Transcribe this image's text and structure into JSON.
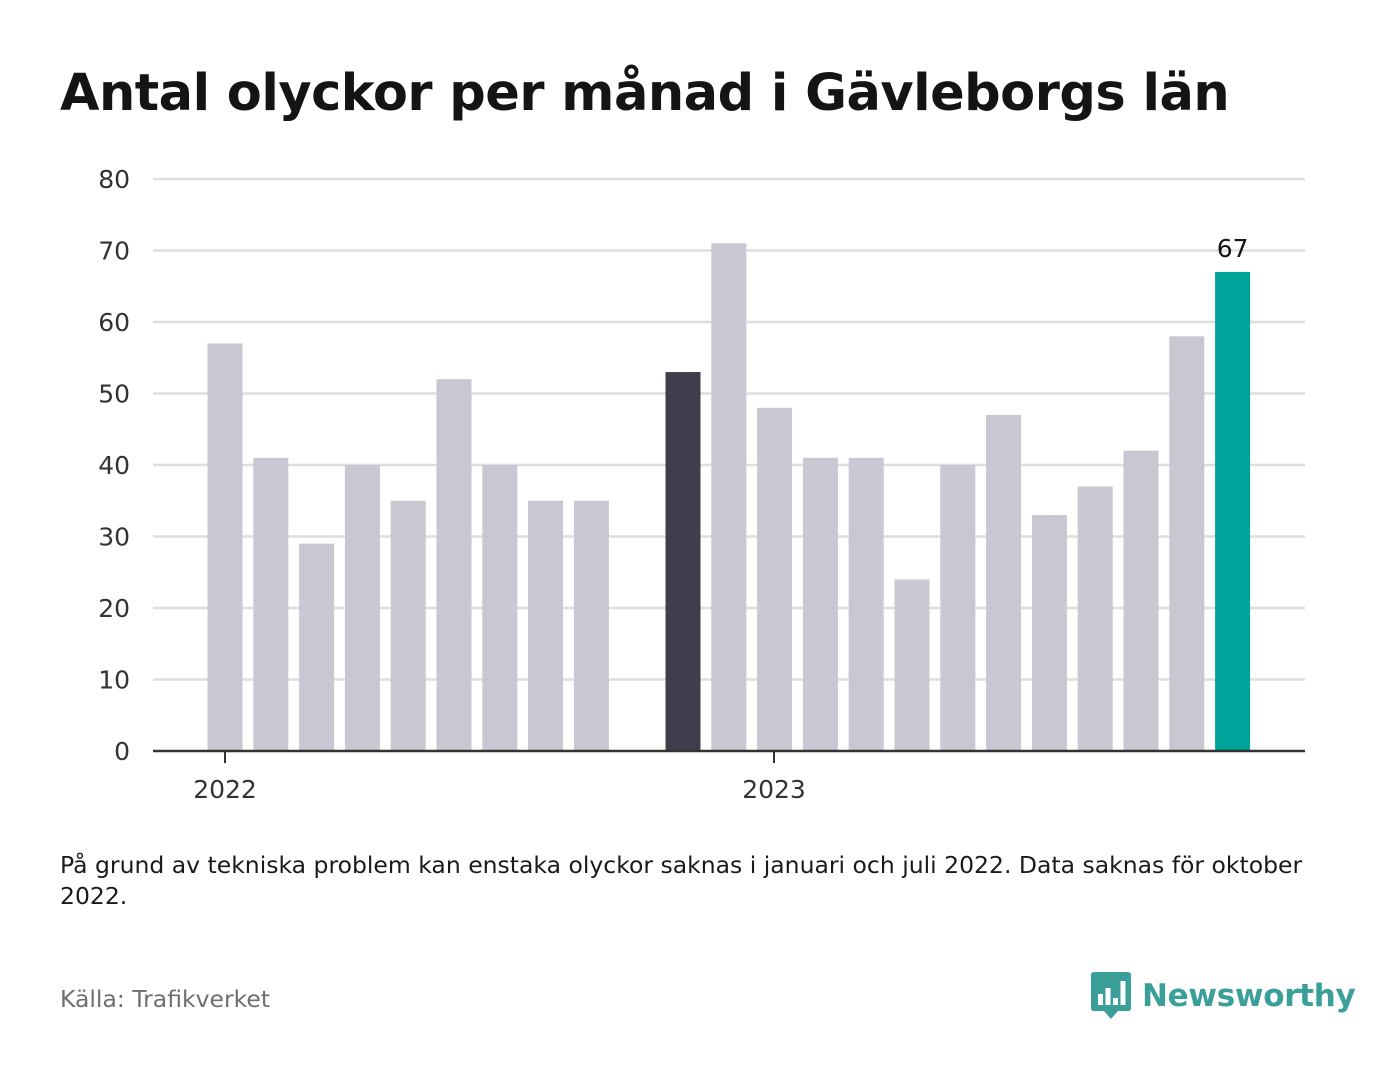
{
  "title": "Antal olyckor per månad i Gävleborgs län",
  "note": "På grund av tekniska problem kan enstaka olyckor saknas i januari och juli 2022. Data saknas för oktober 2022.",
  "source": "Källa: Trafikverket",
  "brand": {
    "name": "Newsworthy",
    "icon": "newsworthy-chart-bubble-icon",
    "color": "#3a9f98"
  },
  "colors": {
    "default": "#c8c7d2",
    "highlight_dark": "#403e4c",
    "highlight_latest": "#00a39a",
    "grid": "#dedede",
    "axis": "#333333"
  },
  "chart_data": {
    "type": "bar",
    "title": "Antal olyckor per månad i Gävleborgs län",
    "xlabel": "",
    "ylabel": "",
    "ylim": [
      0,
      80
    ],
    "yticks": [
      0,
      10,
      20,
      30,
      40,
      50,
      60,
      70,
      80
    ],
    "grid": true,
    "x_tick_labels": [
      {
        "label": "2022",
        "at": "2022-01"
      },
      {
        "label": "2023",
        "at": "2023-01"
      }
    ],
    "data": [
      {
        "month": "2022-01",
        "value": 57
      },
      {
        "month": "2022-02",
        "value": 41
      },
      {
        "month": "2022-03",
        "value": 29
      },
      {
        "month": "2022-04",
        "value": 40
      },
      {
        "month": "2022-05",
        "value": 35
      },
      {
        "month": "2022-06",
        "value": 52
      },
      {
        "month": "2022-07",
        "value": 40
      },
      {
        "month": "2022-08",
        "value": 35
      },
      {
        "month": "2022-09",
        "value": 35
      },
      {
        "month": "2022-10",
        "value": null
      },
      {
        "month": "2022-11",
        "value": 53,
        "highlight": "dark"
      },
      {
        "month": "2022-12",
        "value": 71
      },
      {
        "month": "2023-01",
        "value": 48
      },
      {
        "month": "2023-02",
        "value": 41
      },
      {
        "month": "2023-03",
        "value": 41
      },
      {
        "month": "2023-04",
        "value": 24
      },
      {
        "month": "2023-05",
        "value": 40
      },
      {
        "month": "2023-06",
        "value": 47
      },
      {
        "month": "2023-07",
        "value": 33
      },
      {
        "month": "2023-08",
        "value": 37
      },
      {
        "month": "2023-09",
        "value": 42
      },
      {
        "month": "2023-10",
        "value": 58
      },
      {
        "month": "2023-11",
        "value": 67,
        "highlight": "latest",
        "label": "67"
      }
    ]
  }
}
